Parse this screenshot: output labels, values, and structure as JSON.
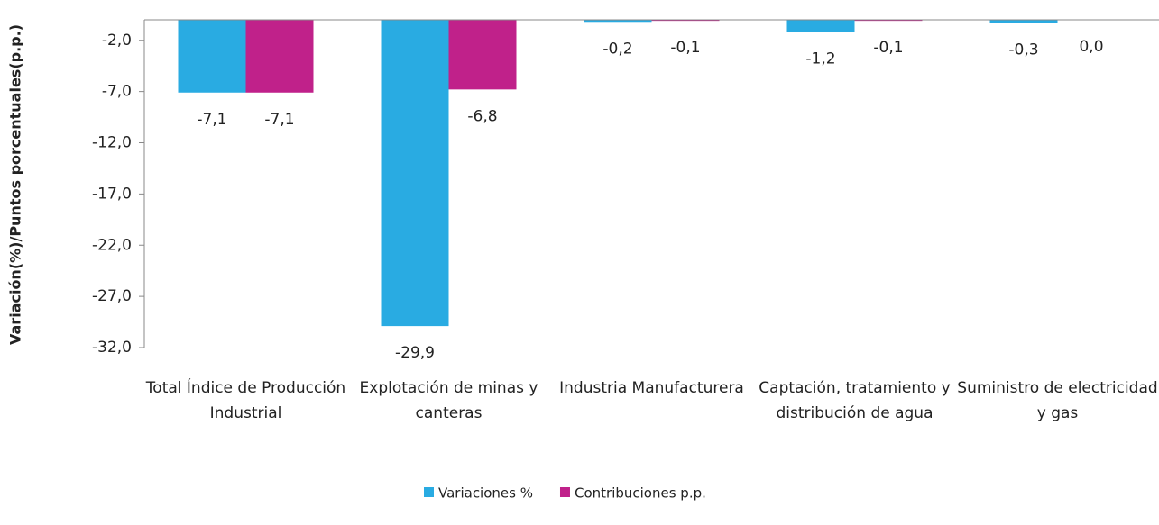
{
  "chart_data": {
    "type": "bar",
    "y_label": "Variación(%)/Puntos porcentuales(p.p.)",
    "categories": [
      "Total Índice de Producción Industrial",
      "Explotación de minas y canteras",
      "Industria Manufacturera",
      "Captación, tratamiento y distribución de agua",
      "Suministro de electricidad y gas"
    ],
    "series": [
      {
        "name": "Variaciones %",
        "color": "#29abe2",
        "values": [
          -7.1,
          -29.9,
          -0.2,
          -1.2,
          -0.3
        ],
        "value_labels": [
          "-7,1",
          "-29,9",
          "-0,2",
          "-1,2",
          "-0,3"
        ]
      },
      {
        "name": "Contribuciones p.p.",
        "color": "#c0218a",
        "values": [
          -7.1,
          -6.8,
          -0.1,
          -0.1,
          0.0
        ],
        "value_labels": [
          "-7,1",
          "-6,8",
          "-0,1",
          "-0,1",
          "0,0"
        ]
      }
    ],
    "ylim": [
      -32,
      0
    ],
    "yticks": [
      {
        "value": -2,
        "label": "-2,0"
      },
      {
        "value": -7,
        "label": "-7,0"
      },
      {
        "value": -12,
        "label": "-12,0"
      },
      {
        "value": -17,
        "label": "-17,0"
      },
      {
        "value": -22,
        "label": "-22,0"
      },
      {
        "value": -27,
        "label": "-27,0"
      },
      {
        "value": -32,
        "label": "-32,0"
      }
    ],
    "legend": "bottom"
  }
}
